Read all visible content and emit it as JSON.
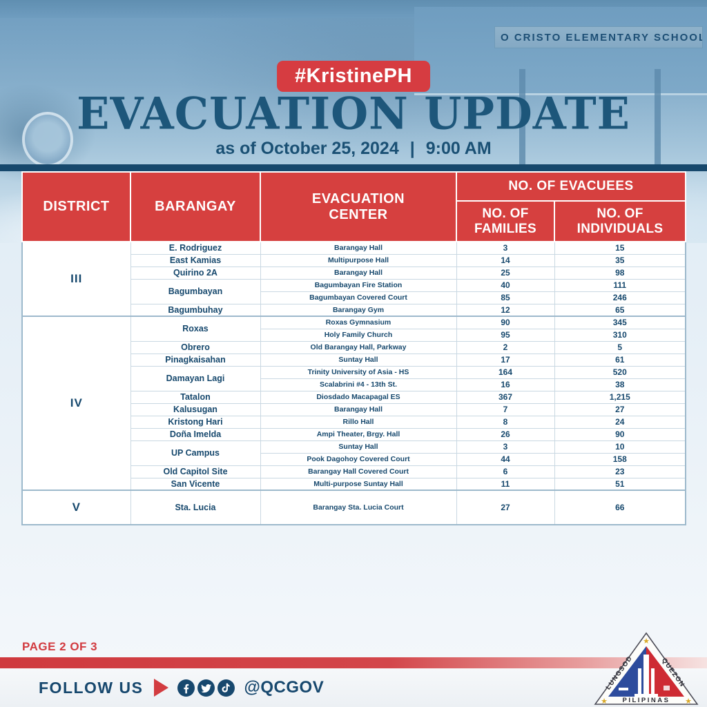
{
  "colors": {
    "accent_red": "#d63c41",
    "navy_text": "#17486e",
    "title_blue": "#1d567a",
    "band_navy": "#17486c"
  },
  "hero": {
    "sign_text": "O CRISTO ELEMENTARY SCHOOL"
  },
  "header": {
    "hashtag": "#KristinePH",
    "title": "EVACUATION UPDATE",
    "as_of": "as of October 25, 2024",
    "divider": "|",
    "time": "9:00 AM"
  },
  "table": {
    "headers": {
      "district": "DISTRICT",
      "barangay": "BARANGAY",
      "evacuation_center": "EVACUATION CENTER",
      "evacuees_group": "NO. OF EVACUEES",
      "families": "NO. OF FAMILIES",
      "individuals": "NO. OF INDIVIDUALS"
    },
    "sections": [
      {
        "district": "III",
        "rows": [
          {
            "barangay": "E. Rodriguez",
            "rowspan": 1,
            "center": "Barangay Hall",
            "families": "3",
            "individuals": "15"
          },
          {
            "barangay": "East Kamias",
            "rowspan": 1,
            "center": "Multipurpose Hall",
            "families": "14",
            "individuals": "35"
          },
          {
            "barangay": "Quirino 2A",
            "rowspan": 1,
            "center": "Barangay Hall",
            "families": "25",
            "individuals": "98"
          },
          {
            "barangay": "Bagumbayan",
            "rowspan": 2,
            "center": "Bagumbayan Fire Station",
            "families": "40",
            "individuals": "111"
          },
          {
            "center": "Bagumbayan Covered Court",
            "families": "85",
            "individuals": "246"
          },
          {
            "barangay": "Bagumbuhay",
            "rowspan": 1,
            "center": "Barangay Gym",
            "families": "12",
            "individuals": "65"
          }
        ]
      },
      {
        "district": "IV",
        "rows": [
          {
            "barangay": "Roxas",
            "rowspan": 2,
            "center": "Roxas Gymnasium",
            "families": "90",
            "individuals": "345"
          },
          {
            "center": "Holy Family Church",
            "families": "95",
            "individuals": "310"
          },
          {
            "barangay": "Obrero",
            "rowspan": 1,
            "center": "Old Barangay Hall, Parkway",
            "families": "2",
            "individuals": "5"
          },
          {
            "barangay": "Pinagkaisahan",
            "rowspan": 1,
            "center": "Suntay Hall",
            "families": "17",
            "individuals": "61"
          },
          {
            "barangay": "Damayan Lagi",
            "rowspan": 2,
            "center": "Trinity University of Asia - HS",
            "families": "164",
            "individuals": "520"
          },
          {
            "center": "Scalabrini #4 - 13th St.",
            "families": "16",
            "individuals": "38"
          },
          {
            "barangay": "Tatalon",
            "rowspan": 1,
            "center": "Diosdado Macapagal ES",
            "families": "367",
            "individuals": "1,215"
          },
          {
            "barangay": "Kalusugan",
            "rowspan": 1,
            "center": "Barangay Hall",
            "families": "7",
            "individuals": "27"
          },
          {
            "barangay": "Kristong Hari",
            "rowspan": 1,
            "center": "Rillo Hall",
            "families": "8",
            "individuals": "24"
          },
          {
            "barangay": "Doña Imelda",
            "rowspan": 1,
            "center": "Ampi Theater, Brgy. Hall",
            "families": "26",
            "individuals": "90"
          },
          {
            "barangay": "UP Campus",
            "rowspan": 2,
            "center": "Suntay Hall",
            "families": "3",
            "individuals": "10"
          },
          {
            "center": "Pook Dagohoy Covered Court",
            "families": "44",
            "individuals": "158"
          },
          {
            "barangay": "Old Capitol Site",
            "rowspan": 1,
            "center": "Barangay Hall Covered Court",
            "families": "6",
            "individuals": "23"
          },
          {
            "barangay": "San Vicente",
            "rowspan": 1,
            "center": "Multi-purpose Suntay Hall",
            "families": "11",
            "individuals": "51"
          }
        ]
      },
      {
        "district": "V",
        "rows": [
          {
            "barangay": "Sta. Lucia",
            "rowspan": 1,
            "center": "Barangay Sta. Lucia Court",
            "families": "27",
            "individuals": "66",
            "tall": true
          }
        ]
      }
    ]
  },
  "footer": {
    "page_label": "PAGE 2 OF 3",
    "follow_us": "FOLLOW US",
    "handle": "@QCGOV",
    "social_icons": [
      "facebook-icon",
      "twitter-icon",
      "tiktok-icon"
    ],
    "logo": {
      "left_text": "LUNGSOD",
      "right_text": "QUEZON",
      "bottom_text": "PILIPINAS"
    }
  }
}
